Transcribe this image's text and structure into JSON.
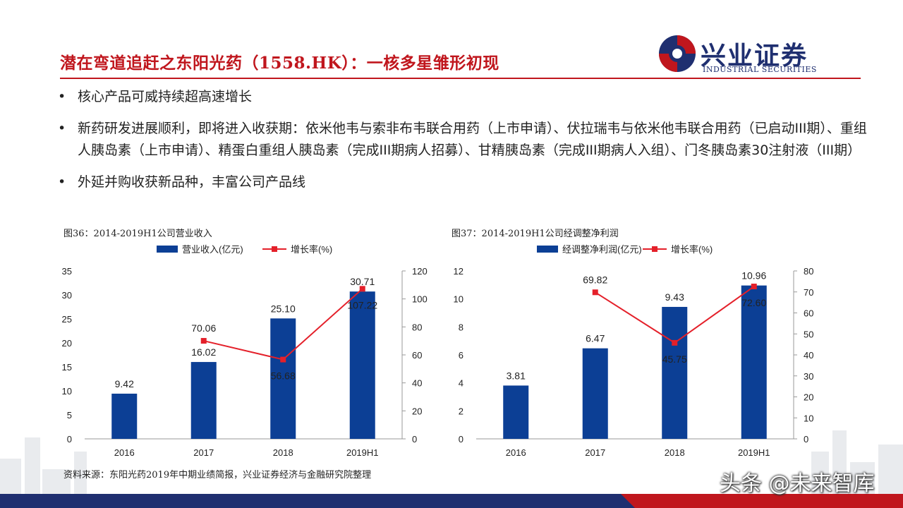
{
  "header": {
    "title": "潜在弯道追赶之东阳光药（1558.HK）：一核多星雏形初现",
    "logo_cn": "兴业证券",
    "logo_en": "INDUSTRIAL SECURITIES"
  },
  "bullets": [
    "核心产品可威持续超高速增长",
    "新药研发进展顺利，即将进入收获期：依米他韦与索非布韦联合用药（上市申请）、伏拉瑞韦与依米他韦联合用药（已启动III期）、重组人胰岛素（上市申请）、精蛋白重组人胰岛素（完成III期病人招募）、甘精胰岛素（完成III期病人入组）、门冬胰岛素30注射液（III期）",
    "外延并购收获新品种，丰富公司产品线"
  ],
  "chart_titles": [
    "图36：2014-2019H1公司营业收入",
    "图37：2014-2019H1公司经调整净利润"
  ],
  "source": "资料来源：东阳光药2019年中期业绩简报，兴业证券经济与金融研究院整理",
  "watermark": "头条 @未来智库",
  "colors": {
    "accent": "#c0161d",
    "bar": "#0c3f95",
    "line": "#e4202a",
    "brand": "#1f2f70"
  },
  "chart_data": [
    {
      "type": "bar+line",
      "categories": [
        "2016",
        "2017",
        "2018",
        "2019H1"
      ],
      "series": [
        {
          "name": "营业收入(亿元)",
          "type": "bar",
          "axis": "left",
          "values": [
            9.42,
            16.02,
            25.1,
            30.71
          ],
          "labels": [
            "9.42",
            "16.02",
            "25.10",
            "30.71"
          ]
        },
        {
          "name": "增长率(%)",
          "type": "line",
          "axis": "right",
          "values": [
            null,
            70.06,
            56.68,
            107.22
          ],
          "labels": [
            "",
            "70.06",
            "56.68",
            "107.22"
          ]
        }
      ],
      "ylim_left": [
        0,
        35
      ],
      "yticks_left": [
        0,
        5,
        10,
        15,
        20,
        25,
        30,
        35
      ],
      "ylim_right": [
        0,
        120
      ],
      "yticks_right": [
        0,
        20,
        40,
        60,
        80,
        100,
        120
      ],
      "legend": "top"
    },
    {
      "type": "bar+line",
      "categories": [
        "2016",
        "2017",
        "2018",
        "2019H1"
      ],
      "series": [
        {
          "name": "经调整净利润(亿元)",
          "type": "bar",
          "axis": "left",
          "values": [
            3.81,
            6.47,
            9.43,
            10.96
          ],
          "labels": [
            "3.81",
            "6.47",
            "9.43",
            "10.96"
          ]
        },
        {
          "name": "增长率(%)",
          "type": "line",
          "axis": "right",
          "values": [
            null,
            69.82,
            45.75,
            72.6
          ],
          "labels": [
            "",
            "69.82",
            "45.75",
            "72.60"
          ]
        }
      ],
      "ylim_left": [
        0,
        12
      ],
      "yticks_left": [
        0,
        2,
        4,
        6,
        8,
        10,
        12
      ],
      "ylim_right": [
        0,
        80
      ],
      "yticks_right": [
        0,
        10,
        20,
        30,
        40,
        50,
        60,
        70,
        80
      ],
      "legend": "top"
    }
  ]
}
